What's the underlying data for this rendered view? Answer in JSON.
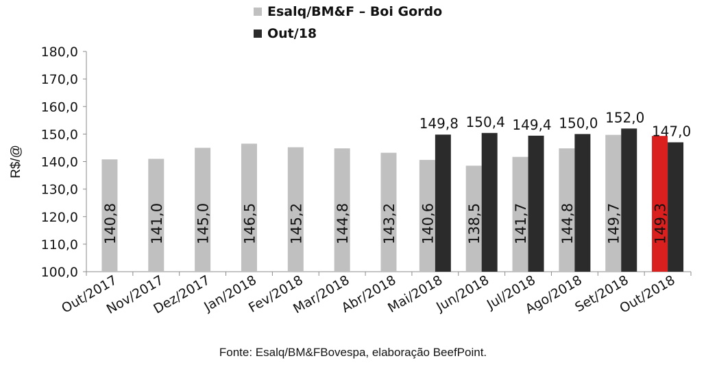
{
  "chart_data": {
    "type": "bar",
    "categories": [
      "Out/2017",
      "Nov/2017",
      "Dez/2017",
      "Jan/2018",
      "Fev/2018",
      "Mar/2018",
      "Abr/2018",
      "Mai/2018",
      "Jun/2018",
      "Jul/2018",
      "Ago/2018",
      "Set/2018",
      "Out/2018"
    ],
    "series": [
      {
        "name": "Esalq/BM&F – Boi Gordo",
        "values": [
          140.8,
          141.0,
          145.0,
          146.5,
          145.2,
          144.8,
          143.2,
          140.6,
          138.5,
          141.7,
          144.8,
          149.7,
          149.3
        ],
        "labels": [
          "140,8",
          "141,0",
          "145,0",
          "146,5",
          "145,2",
          "144,8",
          "143,2",
          "140,6",
          "138,5",
          "141,7",
          "144,8",
          "149,7",
          "149,3"
        ],
        "color": "#c0c0c0",
        "highlight_index": 12,
        "highlight_color": "#d9201f"
      },
      {
        "name": "Out/18",
        "values": [
          null,
          null,
          null,
          null,
          null,
          null,
          null,
          149.8,
          150.4,
          149.4,
          150.0,
          152.0,
          147.0
        ],
        "labels": [
          "",
          "",
          "",
          "",
          "",
          "",
          "",
          "149,8",
          "150,4",
          "149,4",
          "150,0",
          "152,0",
          "147,0"
        ],
        "color": "#2b2b2b"
      }
    ],
    "ylabel": "R$/@",
    "ylim": [
      100,
      180
    ],
    "yticks": [
      "100,0",
      "110,0",
      "120,0",
      "130,0",
      "140,0",
      "150,0",
      "160,0",
      "170,0",
      "180,0"
    ],
    "legend_position": "top-center",
    "grid": false
  },
  "source_text": "Fonte: Esalq/BM&FBovespa, elaboração BeefPoint."
}
